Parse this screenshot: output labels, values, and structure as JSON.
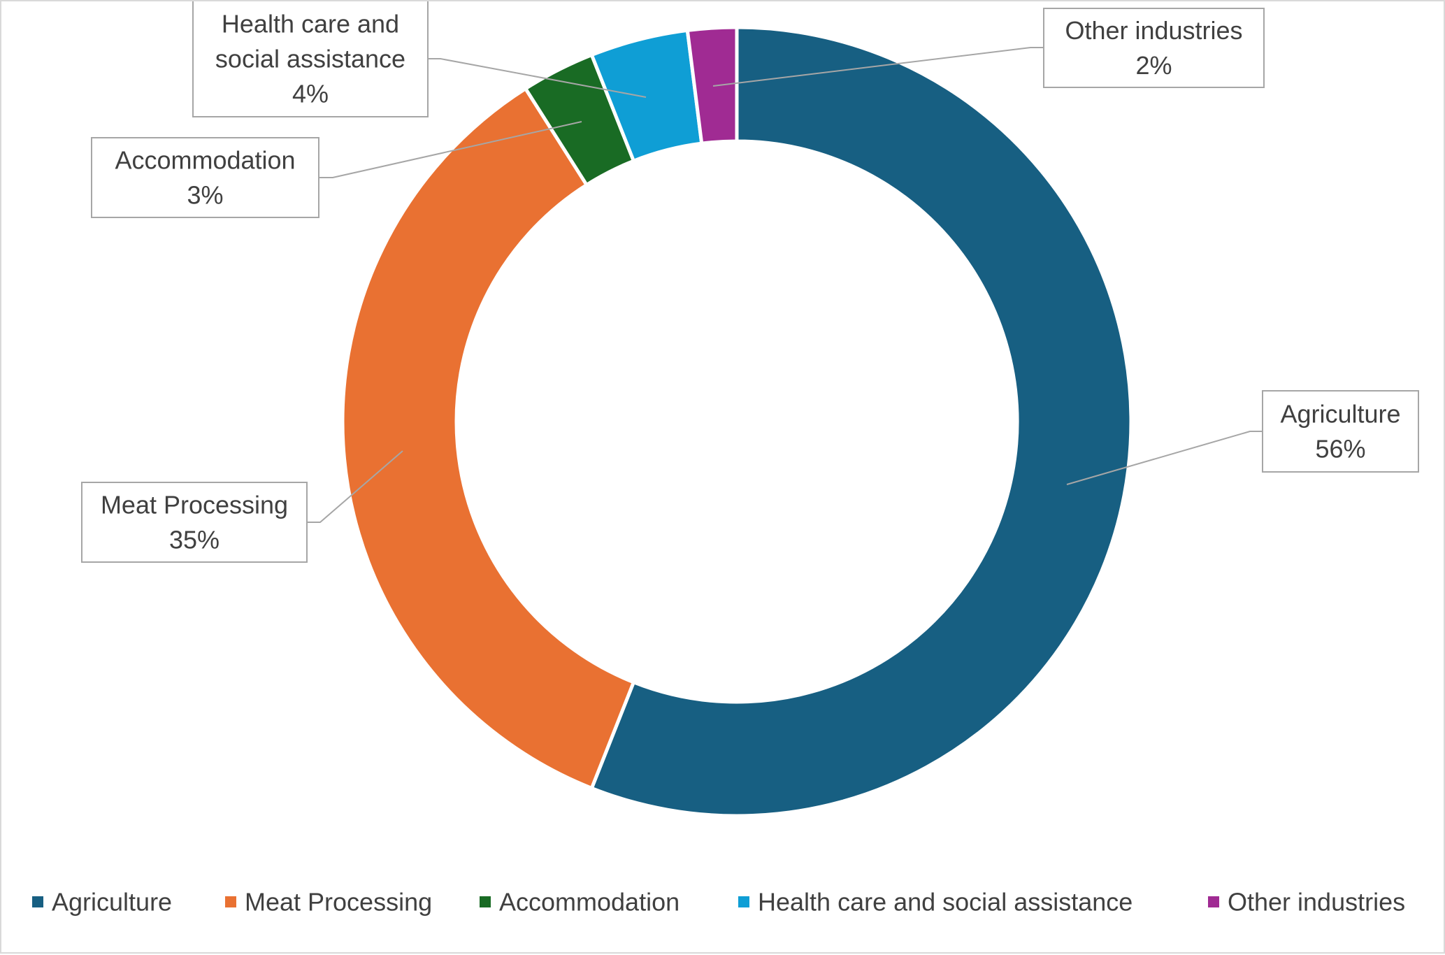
{
  "chart_data": {
    "type": "pie",
    "subtype": "donut",
    "title": "",
    "categories": [
      "Agriculture",
      "Meat Processing",
      "Accommodation",
      "Health care and social assistance",
      "Other industries"
    ],
    "values": [
      56,
      35,
      3,
      4,
      2
    ],
    "unit": "%",
    "label_lines": [
      [
        "Agriculture",
        "56%"
      ],
      [
        "Meat Processing",
        "35%"
      ],
      [
        "Accommodation",
        "3%"
      ],
      [
        "Health care and",
        "social assistance",
        "4%"
      ],
      [
        "Other industries",
        "2%"
      ]
    ],
    "colors": [
      "#175f82",
      "#e97132",
      "#196b24",
      "#0f9ed5",
      "#a02b93"
    ],
    "legend": {
      "position": "bottom",
      "entries": [
        "Agriculture",
        "Meat Processing",
        "Accommodation",
        "Health care and social assistance",
        "Other industries"
      ]
    }
  }
}
